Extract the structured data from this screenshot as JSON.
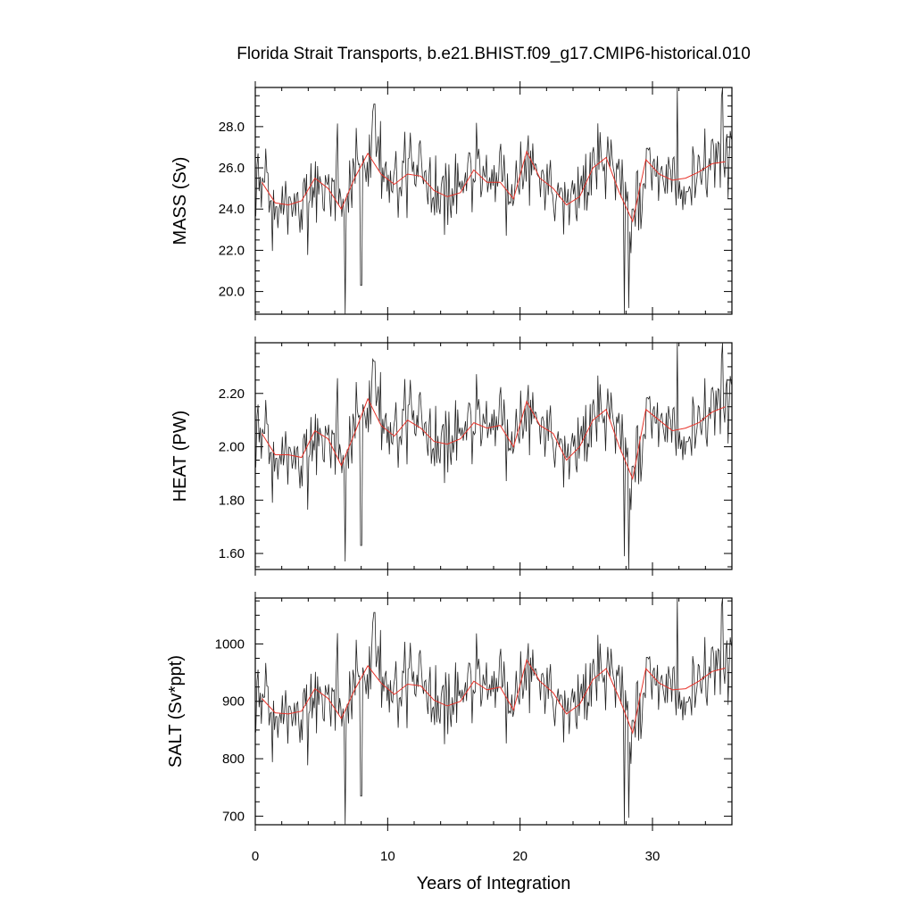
{
  "title": "Florida Strait Transports, b.e21.BHIST.f09_g17.CMIP6-historical.010",
  "colors": {
    "monthly": "#222222",
    "annual": "#e8332a",
    "frame": "#000000"
  },
  "chart_data": [
    {
      "type": "line",
      "ylabel": "MASS (Sv)",
      "xlabel": "",
      "xlim": [
        0,
        36
      ],
      "ylim": [
        18.9,
        29.9
      ],
      "yticks": [
        20.0,
        22.0,
        24.0,
        26.0,
        28.0
      ],
      "ytick_labels": [
        "20.0",
        "22.0",
        "24.0",
        "26.0",
        "28.0"
      ],
      "grid": false,
      "annual_x": [
        0.5,
        1.5,
        2.5,
        3.5,
        4.5,
        5.5,
        6.5,
        7.5,
        8.5,
        9.5,
        10.5,
        11.5,
        12.5,
        13.5,
        14.5,
        15.5,
        16.5,
        17.5,
        18.5,
        19.5,
        20.5,
        21.5,
        22.5,
        23.5,
        24.5,
        25.5,
        26.5,
        27.5,
        28.5,
        29.5,
        30.5,
        31.5,
        32.5,
        33.5,
        34.5,
        35.5
      ],
      "annual": [
        25.3,
        24.3,
        24.2,
        24.4,
        25.5,
        25.0,
        24.0,
        25.5,
        26.7,
        25.7,
        25.2,
        25.7,
        25.6,
        24.9,
        24.6,
        24.8,
        25.9,
        25.3,
        25.3,
        24.5,
        26.8,
        25.5,
        25.0,
        24.2,
        24.6,
        26.0,
        26.5,
        24.8,
        23.4,
        26.4,
        25.7,
        25.4,
        25.5,
        25.8,
        26.2,
        26.3
      ],
      "lows": [
        [
          6.8,
          18.9
        ],
        [
          8.0,
          20.3
        ],
        [
          27.9,
          18.9
        ],
        [
          28.2,
          19.2
        ]
      ],
      "highs": [
        [
          9.0,
          29.1
        ],
        [
          31.9,
          29.9
        ],
        [
          35.2,
          29.4
        ]
      ]
    },
    {
      "type": "line",
      "ylabel": "HEAT (PW)",
      "xlabel": "",
      "xlim": [
        0,
        36
      ],
      "ylim": [
        1.54,
        2.39
      ],
      "yticks": [
        1.6,
        1.8,
        2.0,
        2.2
      ],
      "ytick_labels": [
        "1.60",
        "1.80",
        "2.00",
        "2.20"
      ],
      "grid": false,
      "annual_x": [
        0.5,
        1.5,
        2.5,
        3.5,
        4.5,
        5.5,
        6.5,
        7.5,
        8.5,
        9.5,
        10.5,
        11.5,
        12.5,
        13.5,
        14.5,
        15.5,
        16.5,
        17.5,
        18.5,
        19.5,
        20.5,
        21.5,
        22.5,
        23.5,
        24.5,
        25.5,
        26.5,
        27.5,
        28.5,
        29.5,
        30.5,
        31.5,
        32.5,
        33.5,
        34.5,
        35.5
      ],
      "annual": [
        2.05,
        1.97,
        1.97,
        1.96,
        2.06,
        2.03,
        1.93,
        2.05,
        2.18,
        2.08,
        2.04,
        2.1,
        2.07,
        2.02,
        2.01,
        2.03,
        2.09,
        2.07,
        2.08,
        2.0,
        2.17,
        2.08,
        2.05,
        1.95,
        2.0,
        2.1,
        2.14,
        2.0,
        1.88,
        2.14,
        2.1,
        2.06,
        2.07,
        2.09,
        2.13,
        2.15
      ],
      "lows": [
        [
          6.8,
          1.57
        ],
        [
          8.0,
          1.63
        ],
        [
          27.9,
          1.59
        ],
        [
          28.2,
          1.54
        ]
      ],
      "highs": [
        [
          9.0,
          2.32
        ],
        [
          31.9,
          2.39
        ],
        [
          35.2,
          2.33
        ]
      ]
    },
    {
      "type": "line",
      "ylabel": "SALT (Sv*ppt)",
      "xlabel": "Years of Integration",
      "xlim": [
        0,
        36
      ],
      "ylim": [
        685,
        1080
      ],
      "yticks": [
        700,
        800,
        900,
        1000
      ],
      "ytick_labels": [
        "700",
        "800",
        "900",
        "1000"
      ],
      "xticks": [
        0,
        10,
        20,
        30
      ],
      "xtick_labels": [
        "0",
        "10",
        "20",
        "30"
      ],
      "grid": false,
      "annual_x": [
        0.5,
        1.5,
        2.5,
        3.5,
        4.5,
        5.5,
        6.5,
        7.5,
        8.5,
        9.5,
        10.5,
        11.5,
        12.5,
        13.5,
        14.5,
        15.5,
        16.5,
        17.5,
        18.5,
        19.5,
        20.5,
        21.5,
        22.5,
        23.5,
        24.5,
        25.5,
        26.5,
        27.5,
        28.5,
        29.5,
        30.5,
        31.5,
        32.5,
        33.5,
        34.5,
        35.5
      ],
      "annual": [
        905,
        880,
        878,
        883,
        922,
        905,
        870,
        920,
        962,
        932,
        912,
        930,
        927,
        902,
        892,
        900,
        935,
        920,
        925,
        885,
        972,
        935,
        915,
        878,
        895,
        938,
        957,
        905,
        845,
        957,
        932,
        920,
        922,
        935,
        952,
        958
      ],
      "lows": [
        [
          6.8,
          685
        ],
        [
          8.0,
          735
        ],
        [
          27.9,
          685
        ],
        [
          28.2,
          697
        ]
      ],
      "highs": [
        [
          9.0,
          1055
        ],
        [
          31.9,
          1080
        ],
        [
          35.2,
          1065
        ]
      ]
    }
  ]
}
